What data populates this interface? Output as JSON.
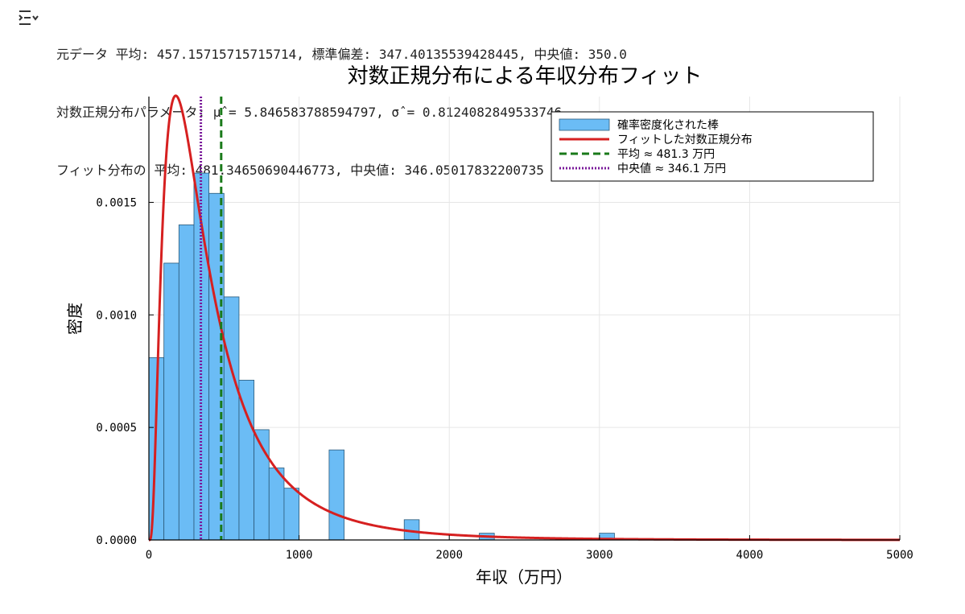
{
  "output": {
    "icon": "output-collapse-icon",
    "lines": [
      "元データ 平均: 457.15715715715714, 標準偏差: 347.40135539428445, 中央値: 350.0",
      "対数正規分布パラメータ: μ̂ = 5.846583788594797, σ̂ = 0.8124082849533746",
      "フィット分布の 平均: 481.34650690446773, 中央値: 346.05017832200735"
    ]
  },
  "chart_data": {
    "type": "bar",
    "title": "対数正規分布による年収分布フィット",
    "xlabel": "年収（万円）",
    "ylabel": "密度",
    "xlim": [
      0,
      5000
    ],
    "ylim": [
      0,
      0.00197
    ],
    "x_ticks": [
      0,
      1000,
      2000,
      3000,
      4000,
      5000
    ],
    "y_ticks": [
      0.0,
      0.0005,
      0.001,
      0.0015
    ],
    "y_tick_labels": [
      "0.0000",
      "0.0005",
      "0.0010",
      "0.0015"
    ],
    "grid": true,
    "legend_position": "top-right",
    "colors": {
      "bars": "#6bbcf5",
      "bar_edge": "#2b5a7a",
      "fit": "#d62020",
      "mean": "#1a7a1a",
      "median": "#7a1a9a"
    },
    "histogram": {
      "name": "確率密度化された棒",
      "bin_width": 100,
      "bins": [
        {
          "start": 0,
          "density": 0.00081
        },
        {
          "start": 100,
          "density": 0.00123
        },
        {
          "start": 200,
          "density": 0.0014
        },
        {
          "start": 300,
          "density": 0.00163
        },
        {
          "start": 400,
          "density": 0.00154
        },
        {
          "start": 500,
          "density": 0.00108
        },
        {
          "start": 600,
          "density": 0.00071
        },
        {
          "start": 700,
          "density": 0.00049
        },
        {
          "start": 800,
          "density": 0.00032
        },
        {
          "start": 900,
          "density": 0.00023
        },
        {
          "start": 1200,
          "density": 0.0004
        },
        {
          "start": 1700,
          "density": 9e-05
        },
        {
          "start": 2200,
          "density": 3e-05
        },
        {
          "start": 3000,
          "density": 3e-05
        }
      ]
    },
    "fit": {
      "name": "フィットした対数正規分布",
      "mu": 5.846583788594797,
      "sigma": 0.8124082849533746,
      "x_range": [
        0,
        5000
      ]
    },
    "lines": [
      {
        "name": "平均 ≈ 481.3 万円",
        "x": 481.3,
        "style": "dashed"
      },
      {
        "name": "中央値 ≈ 346.1 万円",
        "x": 346.1,
        "style": "dotted"
      }
    ]
  }
}
